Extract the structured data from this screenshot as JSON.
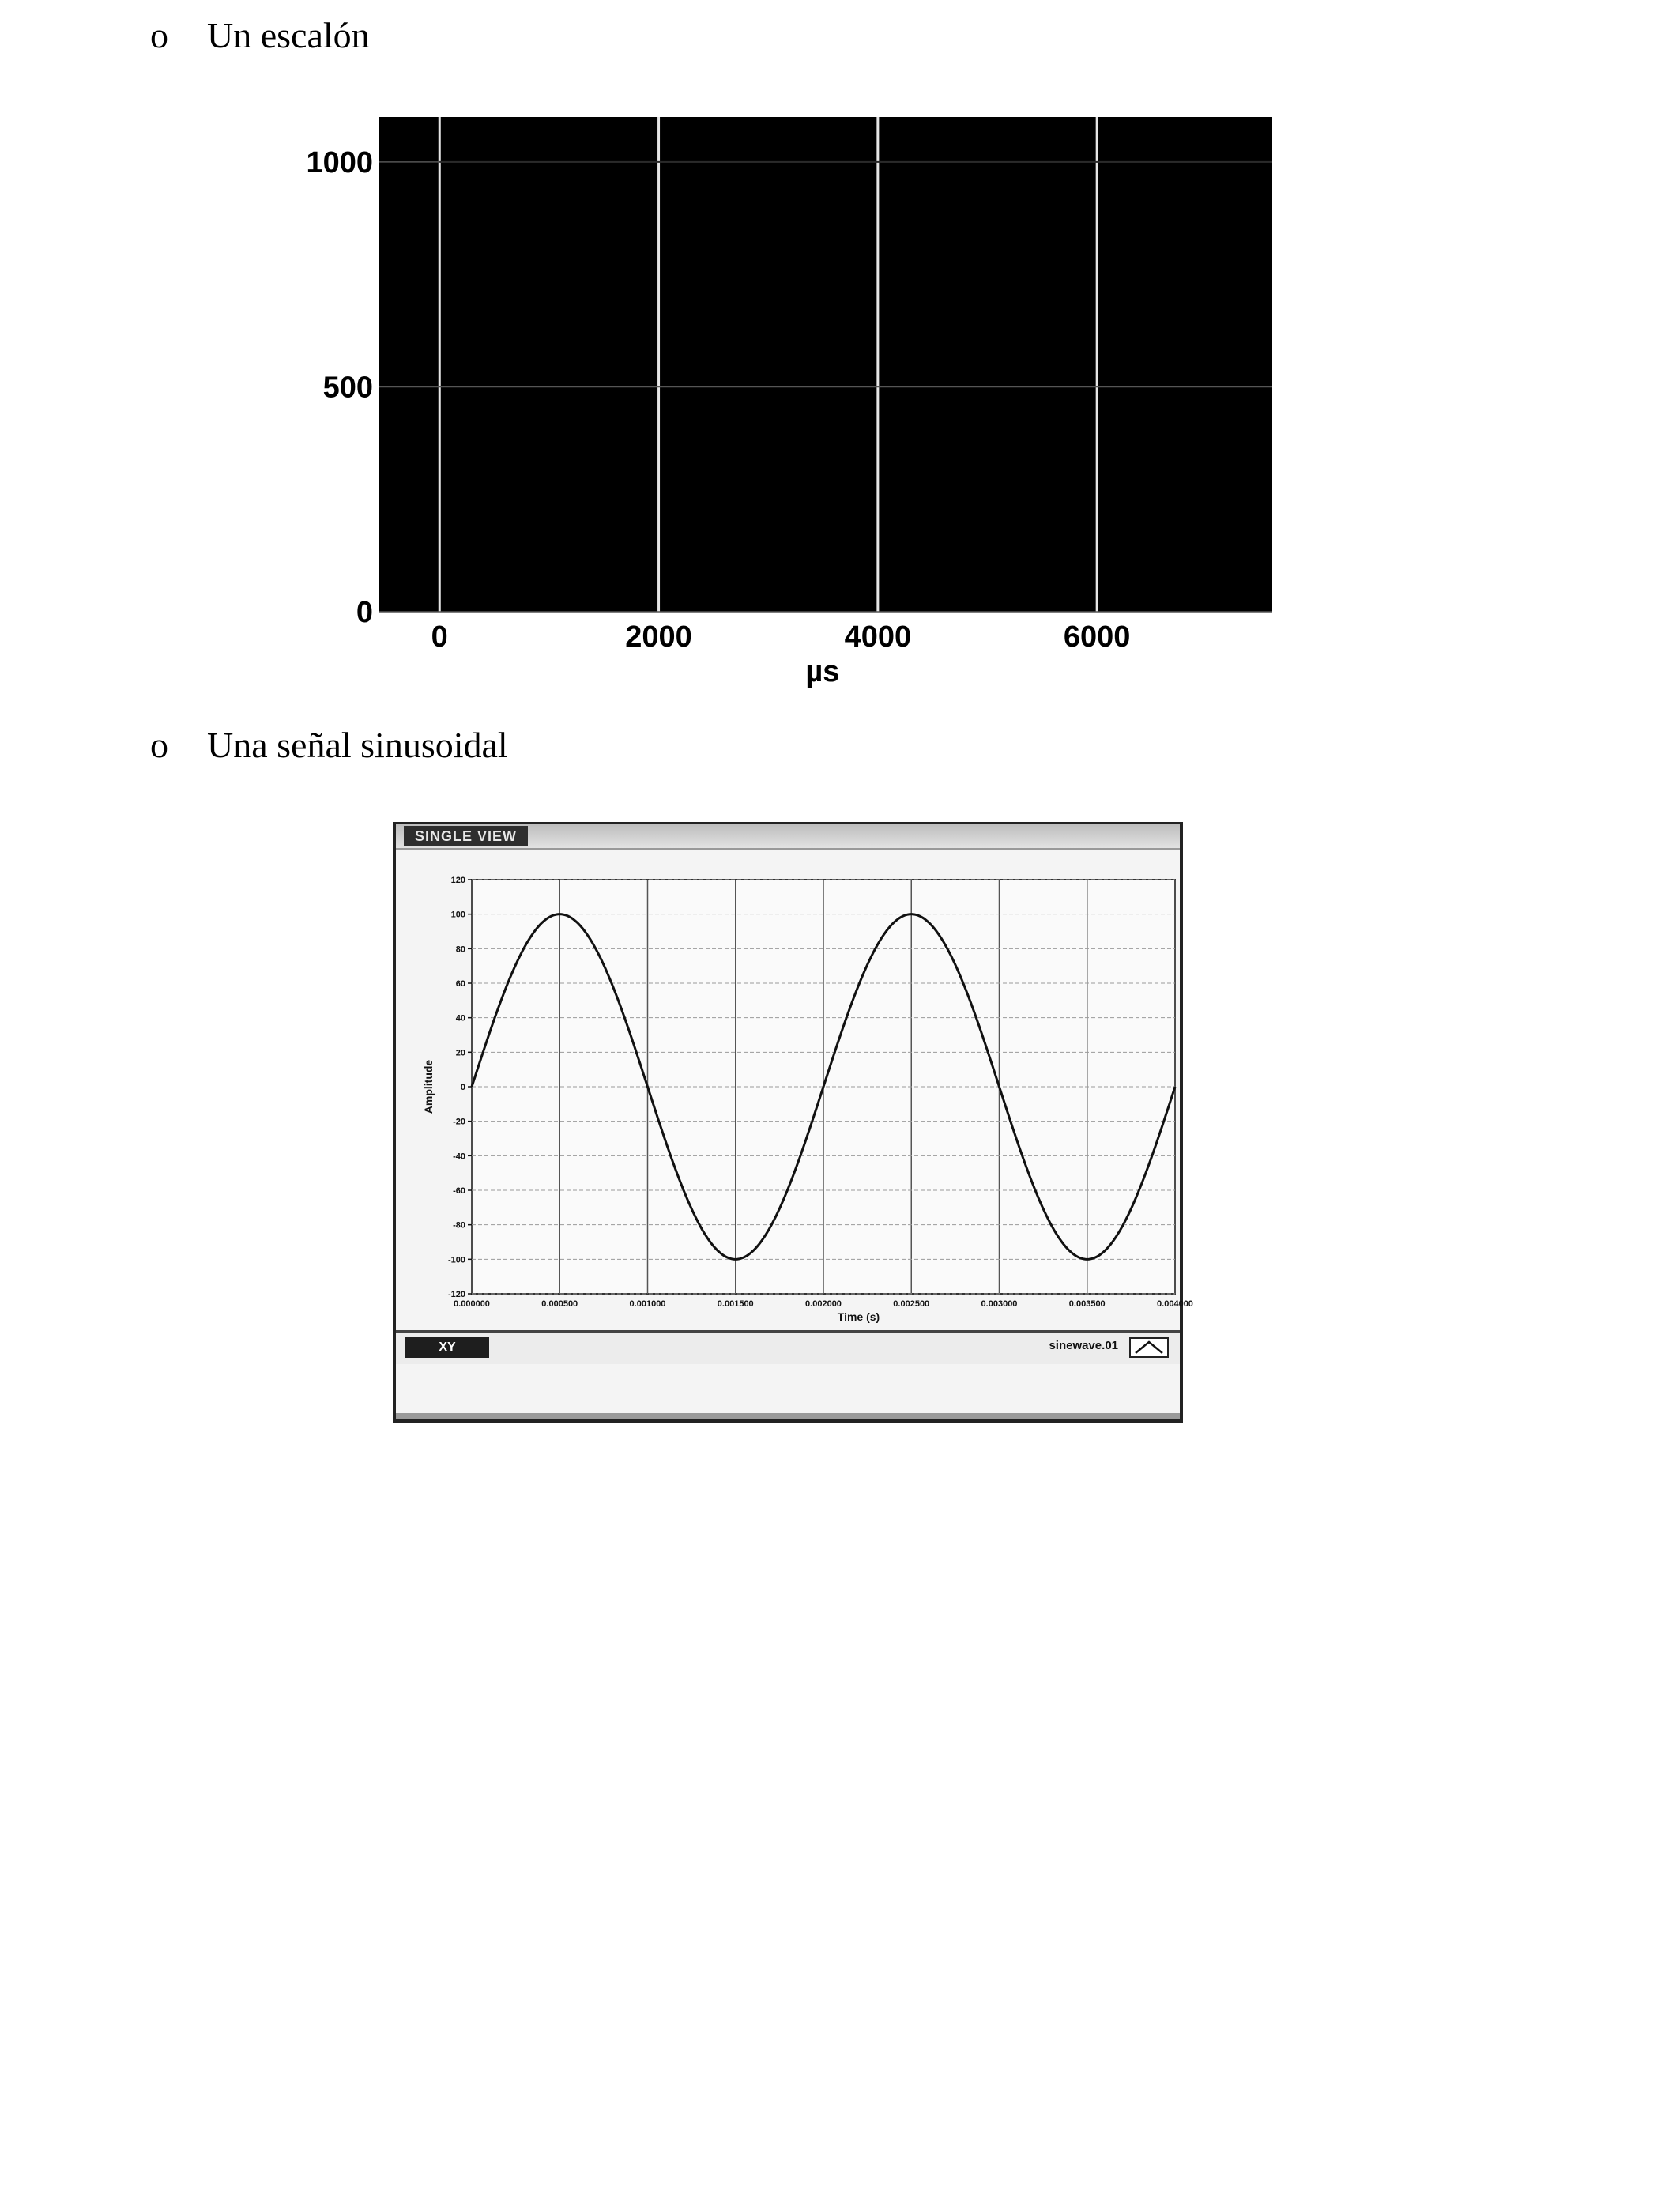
{
  "bullets": [
    {
      "mark": "o",
      "text": "Un escalón"
    },
    {
      "mark": "o",
      "text": "Una señal sinusoidal"
    }
  ],
  "chart_data": [
    {
      "type": "line",
      "title": "",
      "xlabel": "µs",
      "ylabel": "",
      "x_ticks": [
        "0",
        "2000",
        "4000",
        "6000"
      ],
      "y_ticks": [
        "0",
        "500",
        "1000"
      ],
      "xlim": [
        -550,
        7600
      ],
      "ylim": [
        0,
        1100
      ],
      "grid": true,
      "background": "#000000",
      "series": [
        {
          "x": [
            0,
            7600
          ],
          "y": [
            1000,
            1000
          ]
        }
      ]
    },
    {
      "type": "line",
      "window_title": "SINGLE VIEW",
      "title": "",
      "xlabel": "Time (s)",
      "ylabel": "Amplitude",
      "x_ticks": [
        "0.000000",
        "0.000500",
        "0.001000",
        "0.001500",
        "0.002000",
        "0.002500",
        "0.003000",
        "0.003500",
        "0.004000"
      ],
      "y_ticks": [
        "120",
        "100",
        "80",
        "60",
        "40",
        "20",
        "0",
        "-20",
        "-40",
        "-60",
        "-80",
        "-100",
        "-120"
      ],
      "xlim": [
        0,
        0.004
      ],
      "ylim": [
        -120,
        120
      ],
      "grid": true,
      "signal": {
        "shape": "sine",
        "amplitude": 100,
        "frequency_hz": 500
      },
      "legend": {
        "name": "sinewave.01"
      },
      "toolbar_label": "XY"
    }
  ]
}
